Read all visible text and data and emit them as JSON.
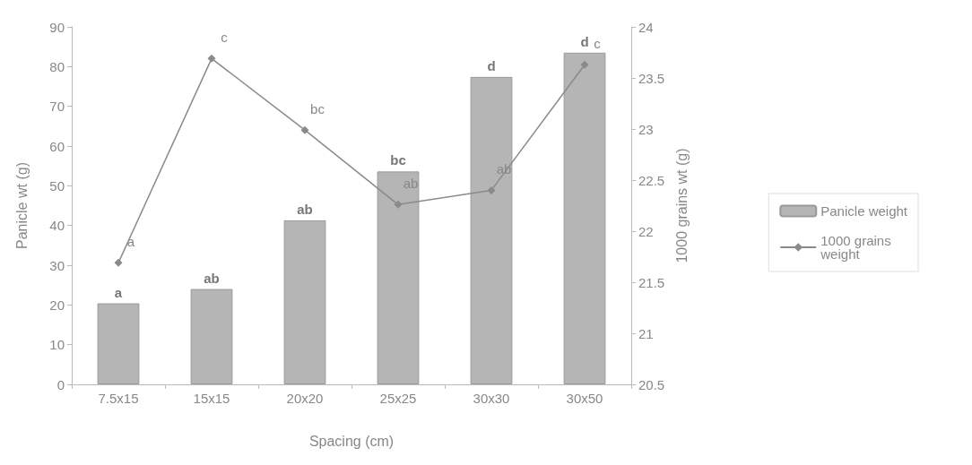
{
  "chart_data": {
    "type": "bar",
    "xlabel": "Spacing (cm)",
    "ylabel": "Panicle wt (g)",
    "y2label": "1000 grains wt (g)",
    "categories": [
      "7.5x15",
      "15x15",
      "20x20",
      "25x25",
      "30x30",
      "30x50"
    ],
    "series": [
      {
        "name": "Panicle weight",
        "color": "#b5b5b5",
        "values": [
          20.4,
          24.0,
          41.3,
          53.6,
          77.4,
          83.5
        ],
        "value_labels": [
          "a",
          "ab",
          "ab",
          "bc",
          "d",
          "d"
        ]
      },
      {
        "name": "1000 grains weight",
        "type": "line",
        "axis": "y2",
        "color": "#8a8a8a",
        "marker": "diamond",
        "values": [
          21.69,
          23.69,
          22.99,
          22.26,
          22.4,
          23.63
        ],
        "value_labels": [
          "a",
          "c",
          "bc",
          "ab",
          "ab",
          "c"
        ]
      }
    ],
    "ylim": [
      0,
      90
    ],
    "yticks": [
      0,
      10,
      20,
      30,
      40,
      50,
      60,
      70,
      80,
      90
    ],
    "y2lim": [
      20.5,
      24
    ],
    "y2ticks": [
      20.5,
      21,
      21.5,
      22,
      22.5,
      23,
      23.5,
      24
    ],
    "grid": false,
    "legend": "right"
  }
}
